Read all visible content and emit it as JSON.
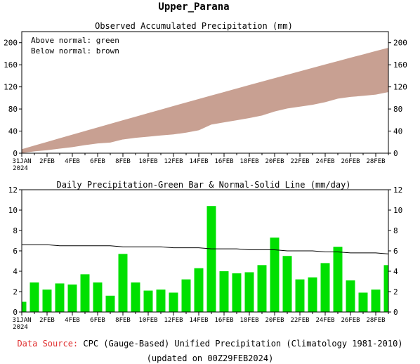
{
  "page_title": "Upper_Parana",
  "footer": {
    "source_label": "Data Source:",
    "source_text": " CPC (Gauge-Based) Unified Precipitation (Climatology 1981-2010)",
    "updated": "(updated on 00Z29FEB2024)"
  },
  "colors": {
    "band": "#c8a092",
    "bar": "#00e000",
    "normal_line": "#000000",
    "source_label": "#e03030"
  },
  "chart_data": [
    {
      "type": "area",
      "title": "Observed Accumulated Precipitation (mm)",
      "annotations": [
        "Above normal: green",
        "Below normal: brown"
      ],
      "x_tick_labels": [
        "31JAN",
        "2FEB",
        "4FEB",
        "6FEB",
        "8FEB",
        "10FEB",
        "12FEB",
        "14FEB",
        "16FEB",
        "18FEB",
        "20FEB",
        "22FEB",
        "24FEB",
        "26FEB",
        "28FEB"
      ],
      "x_year_label": "2024",
      "y_ticks": [
        0,
        40,
        80,
        120,
        160,
        200
      ],
      "ylim": [
        0,
        220
      ],
      "x": [
        "31JAN",
        "1FEB",
        "2FEB",
        "3FEB",
        "4FEB",
        "5FEB",
        "6FEB",
        "7FEB",
        "8FEB",
        "9FEB",
        "10FEB",
        "11FEB",
        "12FEB",
        "13FEB",
        "14FEB",
        "15FEB",
        "16FEB",
        "17FEB",
        "18FEB",
        "19FEB",
        "20FEB",
        "21FEB",
        "22FEB",
        "23FEB",
        "24FEB",
        "25FEB",
        "26FEB",
        "27FEB",
        "28FEB",
        "29FEB"
      ],
      "series": [
        {
          "name": "Observed",
          "values": [
            1,
            3.9,
            6.1,
            8.9,
            11.6,
            15.3,
            18.2,
            19.8,
            25.5,
            28.4,
            30.5,
            32.7,
            34.6,
            37.8,
            42.1,
            52.5,
            56.5,
            60.3,
            64.2,
            68.8,
            76.1,
            81.6,
            84.8,
            88.2,
            93,
            99.4,
            102.5,
            104.4,
            106.6,
            111.2
          ]
        },
        {
          "name": "Normal",
          "values": [
            6.6,
            13.2,
            19.8,
            26.4,
            32.9,
            39.5,
            46,
            52.5,
            59,
            65.4,
            71.9,
            78.3,
            84.7,
            91.1,
            97.4,
            103.8,
            110.1,
            116.4,
            122.7,
            128.9,
            135.2,
            141.4,
            147.6,
            153.7,
            159.9,
            166,
            172.1,
            178.1,
            184.2,
            190.2
          ]
        }
      ],
      "grid": false
    },
    {
      "type": "bar",
      "title": "Daily Precipitation-Green Bar & Normal-Solid Line (mm/day)",
      "x_tick_labels": [
        "31JAN",
        "2FEB",
        "4FEB",
        "6FEB",
        "8FEB",
        "10FEB",
        "12FEB",
        "14FEB",
        "16FEB",
        "18FEB",
        "20FEB",
        "22FEB",
        "24FEB",
        "26FEB",
        "28FEB"
      ],
      "x_year_label": "2024",
      "y_ticks": [
        0,
        2,
        4,
        6,
        8,
        10,
        12
      ],
      "ylim": [
        0,
        12
      ],
      "x": [
        "31JAN",
        "1FEB",
        "2FEB",
        "3FEB",
        "4FEB",
        "5FEB",
        "6FEB",
        "7FEB",
        "8FEB",
        "9FEB",
        "10FEB",
        "11FEB",
        "12FEB",
        "13FEB",
        "14FEB",
        "15FEB",
        "16FEB",
        "17FEB",
        "18FEB",
        "19FEB",
        "20FEB",
        "21FEB",
        "22FEB",
        "23FEB",
        "24FEB",
        "25FEB",
        "26FEB",
        "27FEB",
        "28FEB",
        "29FEB"
      ],
      "series": [
        {
          "name": "Daily Precipitation",
          "values": [
            1.0,
            2.9,
            2.2,
            2.8,
            2.7,
            3.7,
            2.9,
            1.6,
            5.7,
            2.9,
            2.1,
            2.2,
            1.9,
            3.2,
            4.3,
            10.4,
            4.0,
            3.8,
            3.9,
            4.6,
            7.3,
            5.5,
            3.2,
            3.4,
            4.8,
            6.4,
            3.1,
            1.9,
            2.2,
            4.6
          ]
        },
        {
          "name": "Normal",
          "values": [
            6.6,
            6.6,
            6.6,
            6.5,
            6.5,
            6.5,
            6.5,
            6.5,
            6.4,
            6.4,
            6.4,
            6.4,
            6.3,
            6.3,
            6.3,
            6.2,
            6.2,
            6.2,
            6.1,
            6.1,
            6.1,
            6.0,
            6.0,
            6.0,
            5.9,
            5.9,
            5.8,
            5.8,
            5.8,
            5.7
          ]
        }
      ],
      "grid": false
    }
  ]
}
